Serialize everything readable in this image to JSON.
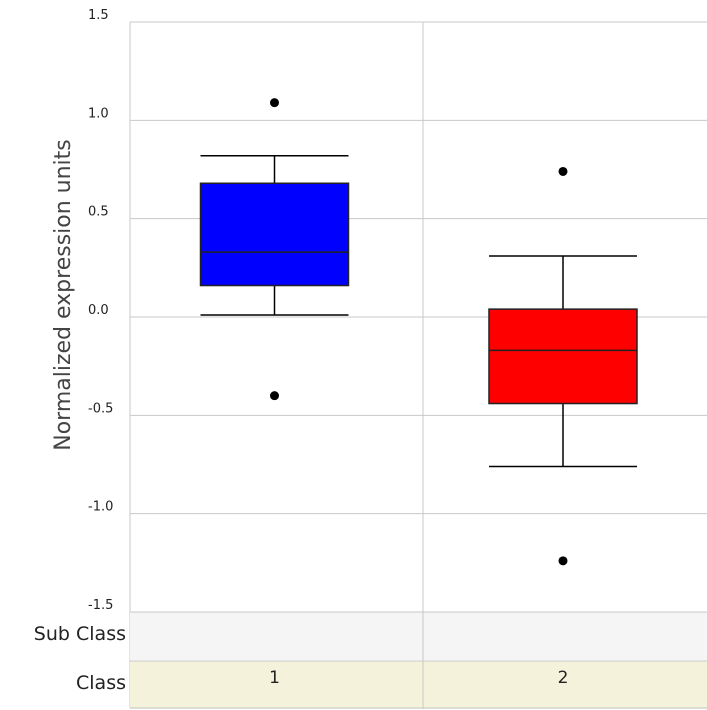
{
  "chart_data": {
    "type": "box",
    "ylabel": "Normalized expression units",
    "ylim": [
      -1.5,
      1.5
    ],
    "yticks": [
      1.5,
      1.0,
      0.5,
      0.0,
      -0.5,
      -1.0,
      -1.5
    ],
    "ytick_labels": [
      "1.5",
      "1.0",
      "0.5",
      "0.0",
      "-0.5",
      "-1.0",
      "-1.5"
    ],
    "grid": true,
    "categories": [
      "1",
      "2"
    ],
    "boxes": [
      {
        "category": "1",
        "color": "#0000ff",
        "whisker_low": 0.01,
        "q1": 0.16,
        "median": 0.33,
        "q3": 0.68,
        "whisker_high": 0.82,
        "outliers": [
          1.09,
          -0.4
        ]
      },
      {
        "category": "2",
        "color": "#ff0000",
        "whisker_low": -0.76,
        "q1": -0.44,
        "median": -0.17,
        "q3": 0.04,
        "whisker_high": 0.31,
        "outliers": [
          0.74,
          -1.24
        ]
      }
    ],
    "annotation_rows": [
      {
        "label": "Sub Class",
        "values": [
          "",
          ""
        ],
        "background": "#f5f5f5"
      },
      {
        "label": "Class",
        "values": [
          "1",
          "2"
        ],
        "background": "#f5f2dc"
      }
    ]
  }
}
